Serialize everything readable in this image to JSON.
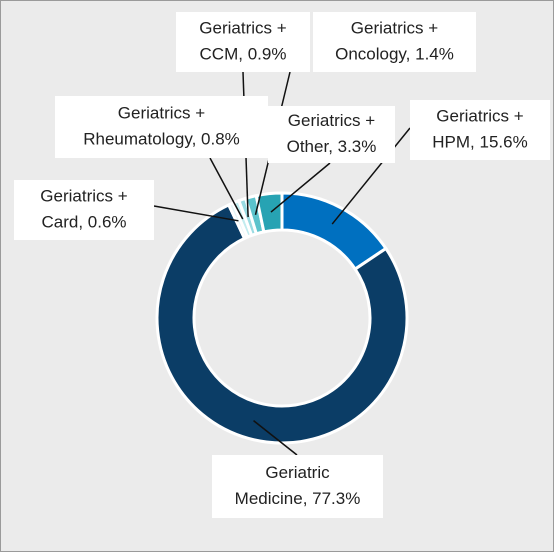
{
  "chart_data": {
    "type": "donut",
    "categories": [
      "Geriatrics + HPM",
      "Geriatric Medicine",
      "Geriatrics + Card",
      "Geriatrics + Rheumatology",
      "Geriatrics + CCM",
      "Geriatrics + Oncology",
      "Geriatrics + Other"
    ],
    "values": [
      15.6,
      77.3,
      0.6,
      0.8,
      0.9,
      1.4,
      3.3
    ],
    "labels": [
      [
        "Geriatrics +",
        "HPM, 15.6%"
      ],
      [
        "Geriatric",
        "Medicine, 77.3%"
      ],
      [
        "Geriatrics +",
        "Card, 0.6%"
      ],
      [
        "Geriatrics +",
        "Rheumatology, 0.8%"
      ],
      [
        "Geriatrics +",
        "CCM, 0.9%"
      ],
      [
        "Geriatrics +",
        "Oncology, 1.4%"
      ],
      [
        "Geriatrics +",
        "Other, 3.3%"
      ]
    ],
    "colors": [
      "#0070c0",
      "#0b3d66",
      "#e4f6f8",
      "#c2ecef",
      "#9adbe2",
      "#5cc3cc",
      "#27a3b3"
    ]
  }
}
